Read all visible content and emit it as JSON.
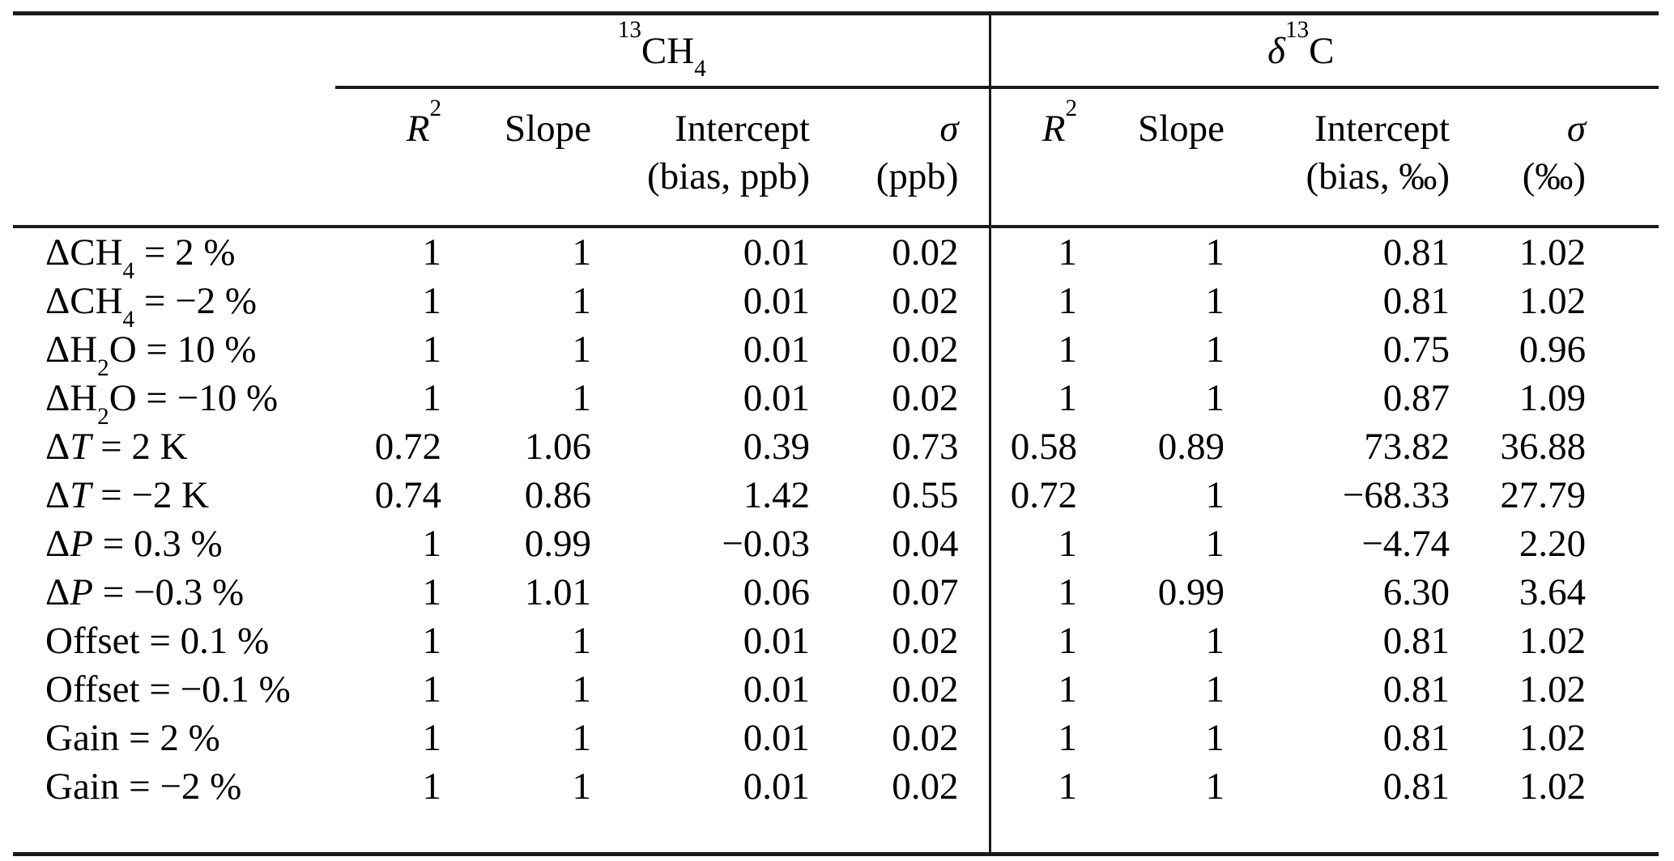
{
  "chart_data": {
    "type": "table",
    "group_headers": [
      {
        "label_html": "<sup>13</sup>CH<sub>4</sub>",
        "text": "13CH4"
      },
      {
        "label_html": "<i>δ</i><sup>13</sup>C",
        "text": "δ13C"
      }
    ],
    "columns": [
      {
        "group": "13CH4",
        "line1_html": "<i>R</i><sup>2</sup>",
        "line2_html": "",
        "text": "R2"
      },
      {
        "group": "13CH4",
        "line1_html": "Slope",
        "line2_html": "",
        "text": "Slope"
      },
      {
        "group": "13CH4",
        "line1_html": "Intercept",
        "line2_html": "(bias, ppb)",
        "text": "Intercept (bias, ppb)"
      },
      {
        "group": "13CH4",
        "line1_html": "<i>σ</i>",
        "line2_html": "(ppb)",
        "text": "σ (ppb)"
      },
      {
        "group": "δ13C",
        "line1_html": "<i>R</i><sup>2</sup>",
        "line2_html": "",
        "text": "R2"
      },
      {
        "group": "δ13C",
        "line1_html": "Slope",
        "line2_html": "",
        "text": "Slope"
      },
      {
        "group": "δ13C",
        "line1_html": "Intercept",
        "line2_html": "(bias, ‰)",
        "text": "Intercept (bias, ‰)"
      },
      {
        "group": "δ13C",
        "line1_html": "<i>σ</i>",
        "line2_html": "(‰)",
        "text": "σ (‰)"
      }
    ],
    "rows": [
      {
        "label_html": "ΔCH<sub>4</sub> = 2 %",
        "label_text": "ΔCH4 = 2 %",
        "values": [
          "1",
          "1",
          "0.01",
          "0.02",
          "1",
          "1",
          "0.81",
          "1.02"
        ]
      },
      {
        "label_html": "ΔCH<sub>4</sub> = −2 %",
        "label_text": "ΔCH4 = −2 %",
        "values": [
          "1",
          "1",
          "0.01",
          "0.02",
          "1",
          "1",
          "0.81",
          "1.02"
        ]
      },
      {
        "label_html": "ΔH<sub>2</sub>O = 10 %",
        "label_text": "ΔH2O = 10 %",
        "values": [
          "1",
          "1",
          "0.01",
          "0.02",
          "1",
          "1",
          "0.75",
          "0.96"
        ]
      },
      {
        "label_html": "ΔH<sub>2</sub>O = −10 %",
        "label_text": "ΔH2O = −10 %",
        "values": [
          "1",
          "1",
          "0.01",
          "0.02",
          "1",
          "1",
          "0.87",
          "1.09"
        ]
      },
      {
        "label_html": "Δ<i>T</i> = 2 K",
        "label_text": "ΔT = 2 K",
        "values": [
          "0.72",
          "1.06",
          "0.39",
          "0.73",
          "0.58",
          "0.89",
          "73.82",
          "36.88"
        ]
      },
      {
        "label_html": "Δ<i>T</i> = −2 K",
        "label_text": "ΔT = −2 K",
        "values": [
          "0.74",
          "0.86",
          "1.42",
          "0.55",
          "0.72",
          "1",
          "−68.33",
          "27.79"
        ]
      },
      {
        "label_html": "Δ<i>P</i> = 0.3 %",
        "label_text": "ΔP = 0.3 %",
        "values": [
          "1",
          "0.99",
          "−0.03",
          "0.04",
          "1",
          "1",
          "−4.74",
          "2.20"
        ]
      },
      {
        "label_html": "Δ<i>P</i> = −0.3 %",
        "label_text": "ΔP = −0.3 %",
        "values": [
          "1",
          "1.01",
          "0.06",
          "0.07",
          "1",
          "0.99",
          "6.30",
          "3.64"
        ]
      },
      {
        "label_html": "Offset = 0.1 %",
        "label_text": "Offset = 0.1 %",
        "values": [
          "1",
          "1",
          "0.01",
          "0.02",
          "1",
          "1",
          "0.81",
          "1.02"
        ]
      },
      {
        "label_html": "Offset = −0.1 %",
        "label_text": "Offset = −0.1 %",
        "values": [
          "1",
          "1",
          "0.01",
          "0.02",
          "1",
          "1",
          "0.81",
          "1.02"
        ]
      },
      {
        "label_html": "Gain = 2 %",
        "label_text": "Gain = 2 %",
        "values": [
          "1",
          "1",
          "0.01",
          "0.02",
          "1",
          "1",
          "0.81",
          "1.02"
        ]
      },
      {
        "label_html": "Gain = −2 %",
        "label_text": "Gain = −2 %",
        "values": [
          "1",
          "1",
          "0.01",
          "0.02",
          "1",
          "1",
          "0.81",
          "1.02"
        ]
      }
    ],
    "layout": {
      "grid": "off",
      "rules": "booktabs: thick top rule, thin rule under group headers, full rule under column headers, thick bottom rule, vertical divider between groups"
    },
    "colors": {
      "text": "#000000",
      "rule": "#1a1a1a",
      "background": "#ffffff"
    }
  }
}
